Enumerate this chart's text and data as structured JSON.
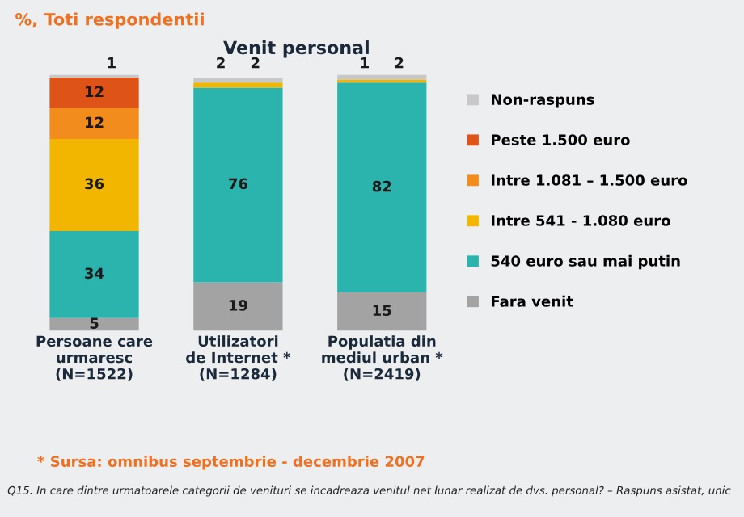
{
  "chart_data": {
    "type": "bar",
    "stacked": true,
    "title": "Venit personal",
    "subtitle": "%, Toti respondentii",
    "categories": [
      "Persoane care\nurmaresc\n(N=1522)",
      "Utilizatori\nde Internet *\n(N=1284)",
      "Populatia din\nmediul urban *\n(N=2419)"
    ],
    "series": [
      {
        "name": "Fara venit",
        "color": "#a3a3a3",
        "values": [
          5,
          19,
          15
        ]
      },
      {
        "name": "540 euro sau mai putin",
        "color": "#2bb3ad",
        "values": [
          34,
          76,
          82
        ]
      },
      {
        "name": "Intre 541 - 1.080 euro",
        "color": "#f2b600",
        "values": [
          36,
          2,
          1
        ]
      },
      {
        "name": "Intre 1.081 – 1.500 euro",
        "color": "#f28c1c",
        "values": [
          12,
          null,
          null
        ]
      },
      {
        "name": "Peste 1.500 euro",
        "color": "#de5418",
        "values": [
          12,
          null,
          null
        ]
      },
      {
        "name": "Non-raspuns",
        "color": "#c8c8c8",
        "values": [
          1,
          2,
          2
        ]
      }
    ],
    "data_labels": true,
    "legend": "right",
    "annotations": [
      "* Sursa: omnibus septembrie - decembrie 2007",
      "Q15. In care dintre urmatoarele categorii de venituri se incadreaza venitul net lunar realizat de dvs. personal? – Raspuns asistat, unic"
    ]
  }
}
